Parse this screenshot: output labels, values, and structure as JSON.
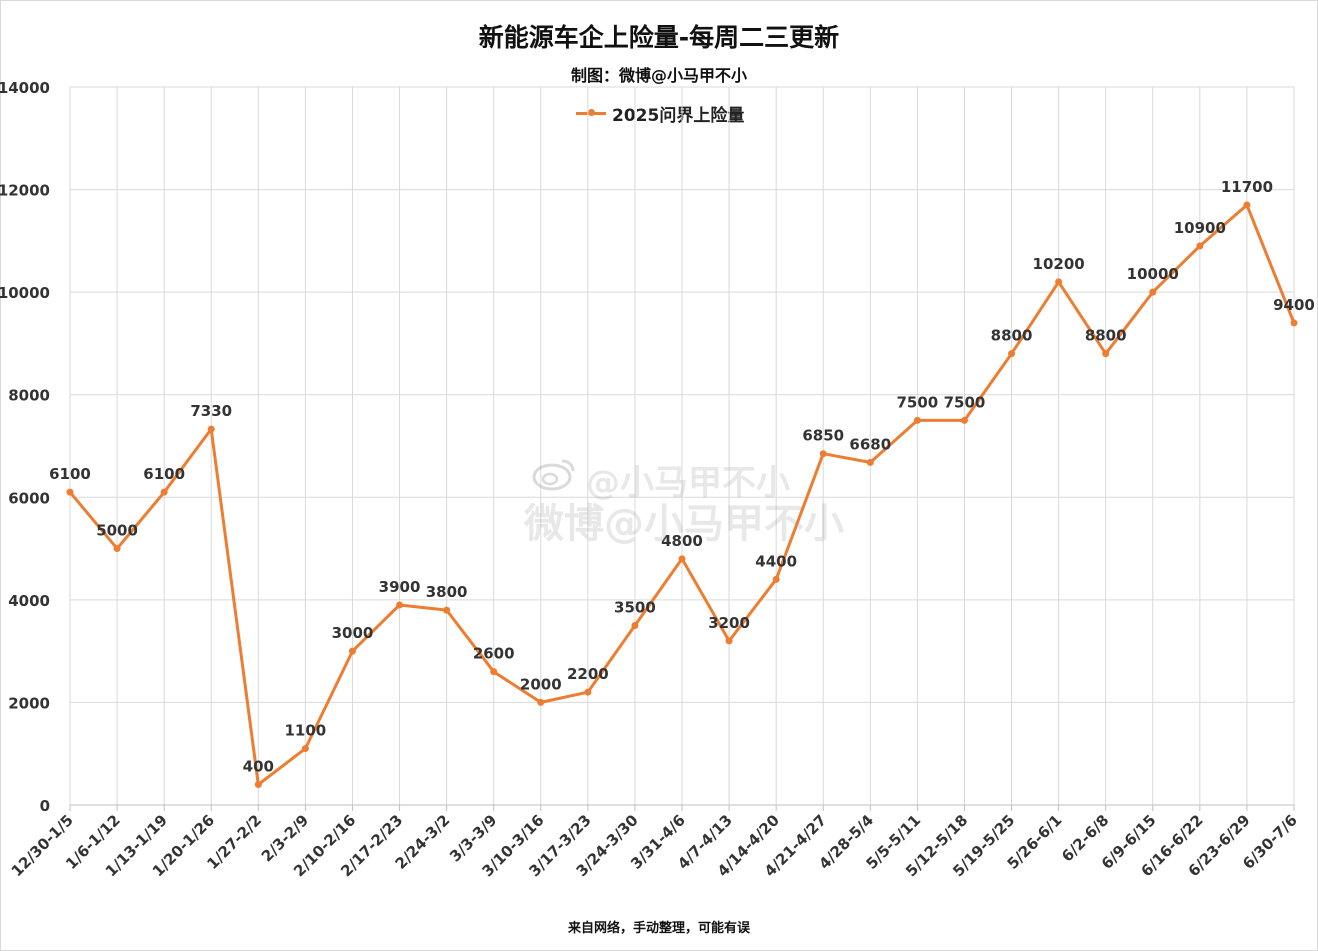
{
  "title": "新能源车企上险量-每周二三更新",
  "subtitle": "制图：微博@小马甲不小",
  "footer": "来自网络，手动整理，可能有误",
  "watermark": {
    "line1": "@小马甲不小",
    "line2": "微博@小马甲不小",
    "icon": "weibo-logo-icon"
  },
  "colors": {
    "series": "#ED7D31",
    "grid": "#d9d9d9",
    "axis_text": "#333333"
  },
  "chart_data": {
    "type": "line",
    "title": "新能源车企上险量-每周二三更新",
    "subtitle": "制图：微博@小马甲不小",
    "xlabel": "",
    "ylabel": "",
    "ylim": [
      0,
      14000
    ],
    "yticks": [
      0,
      2000,
      4000,
      6000,
      8000,
      10000,
      12000,
      14000
    ],
    "grid": true,
    "legend_position": "top-center",
    "categories": [
      "12/30-1/5",
      "1/6-1/12",
      "1/13-1/19",
      "1/20-1/26",
      "1/27-2/2",
      "2/3-2/9",
      "2/10-2/16",
      "2/17-2/23",
      "2/24-3/2",
      "3/3-3/9",
      "3/10-3/16",
      "3/17-3/23",
      "3/24-3/30",
      "3/31-4/6",
      "4/7-4/13",
      "4/14-4/20",
      "4/21-4/27",
      "4/28-5/4",
      "5/5-5/11",
      "5/12-5/18",
      "5/19-5/25",
      "5/26-6/1",
      "6/2-6/8",
      "6/9-6/15",
      "6/16-6/22",
      "6/23-6/29",
      "6/30-7/6"
    ],
    "series": [
      {
        "name": "2025问界上险量",
        "color": "#ED7D31",
        "values": [
          6100,
          5000,
          6100,
          7330,
          400,
          1100,
          3000,
          3900,
          3800,
          2600,
          2000,
          2200,
          3500,
          4800,
          3200,
          4400,
          6850,
          6680,
          7500,
          7500,
          8800,
          10200,
          8800,
          10000,
          10900,
          11700,
          9400
        ]
      }
    ]
  }
}
